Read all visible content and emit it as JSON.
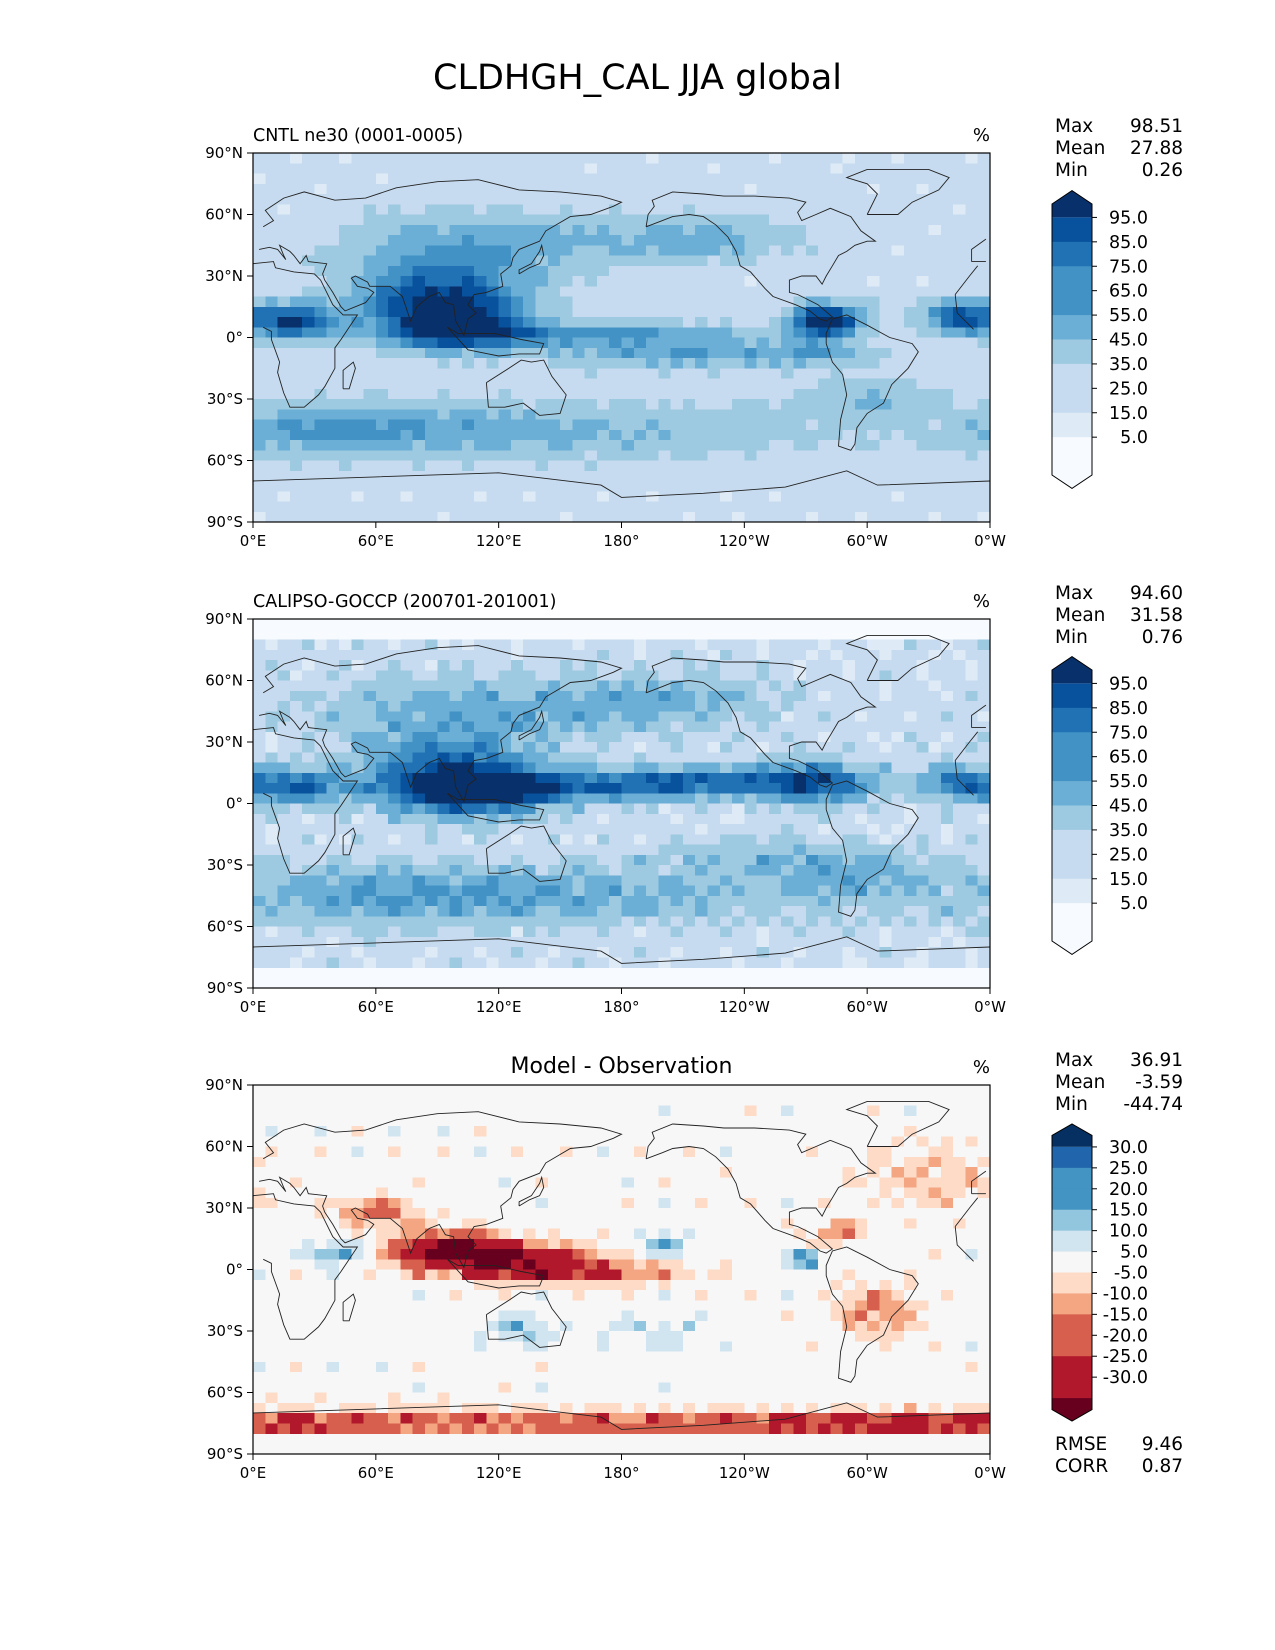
{
  "figure_title": "CLDHGH_CAL JJA global",
  "units": "%",
  "colors": {
    "blues": [
      "#f7fbff",
      "#deebf7",
      "#c6dbef",
      "#9ecae1",
      "#6baed6",
      "#4292c6",
      "#2171b5",
      "#08519c",
      "#08306b"
    ],
    "diff_neg": [
      "#fddbc7",
      "#f4a582",
      "#d6604d",
      "#b2182b",
      "#67001f"
    ],
    "diff_pos": [
      "#d1e5f0",
      "#92c5de",
      "#4393c3",
      "#2166ac",
      "#053061"
    ],
    "neutral": "#f7f7f7",
    "coast": "#222222"
  },
  "chart_data": [
    {
      "type": "heatmap",
      "title": "CNTL ne30 (0001-0005)",
      "units": "%",
      "xlim": [
        0,
        360
      ],
      "ylim": [
        -90,
        90
      ],
      "x_ticks": [
        "0°E",
        "60°E",
        "120°E",
        "180°",
        "120°W",
        "60°W",
        "0°W"
      ],
      "y_ticks": [
        "90°N",
        "60°N",
        "30°N",
        "0°",
        "30°S",
        "60°S",
        "90°S"
      ],
      "stats": {
        "max_label": "Max",
        "max": "98.51",
        "mean_label": "Mean",
        "mean": "27.88",
        "min_label": "Min",
        "min": "0.26"
      },
      "colorbar_levels": [
        "95.0",
        "85.0",
        "75.0",
        "65.0",
        "55.0",
        "45.0",
        "35.0",
        "25.0",
        "15.0",
        "5.0"
      ]
    },
    {
      "type": "heatmap",
      "title": "CALIPSO-GOCCP (200701-201001)",
      "units": "%",
      "xlim": [
        0,
        360
      ],
      "ylim": [
        -90,
        90
      ],
      "x_ticks": [
        "0°E",
        "60°E",
        "120°E",
        "180°",
        "120°W",
        "60°W",
        "0°W"
      ],
      "y_ticks": [
        "90°N",
        "60°N",
        "30°N",
        "0°",
        "30°S",
        "60°S",
        "90°S"
      ],
      "stats": {
        "max_label": "Max",
        "max": "94.60",
        "mean_label": "Mean",
        "mean": "31.58",
        "min_label": "Min",
        "min": "0.76"
      },
      "colorbar_levels": [
        "95.0",
        "85.0",
        "75.0",
        "65.0",
        "55.0",
        "45.0",
        "35.0",
        "25.0",
        "15.0",
        "5.0"
      ]
    },
    {
      "type": "heatmap",
      "title": "Model - Observation",
      "units": "%",
      "xlim": [
        0,
        360
      ],
      "ylim": [
        -90,
        90
      ],
      "x_ticks": [
        "0°E",
        "60°E",
        "120°E",
        "180°",
        "120°W",
        "60°W",
        "0°W"
      ],
      "y_ticks": [
        "90°N",
        "60°N",
        "30°N",
        "0°",
        "30°S",
        "60°S",
        "90°S"
      ],
      "stats": {
        "max_label": "Max",
        "max": "36.91",
        "mean_label": "Mean",
        "mean": "-3.59",
        "min_label": "Min",
        "min": "-44.74"
      },
      "metrics": {
        "rmse_label": "RMSE",
        "rmse": "9.46",
        "corr_label": "CORR",
        "corr": "0.87"
      },
      "colorbar_levels": [
        "30.0",
        "25.0",
        "20.0",
        "15.0",
        "10.0",
        "5.0",
        "-5.0",
        "-10.0",
        "-15.0",
        "-20.0",
        "-25.0",
        "-30.0"
      ]
    }
  ]
}
